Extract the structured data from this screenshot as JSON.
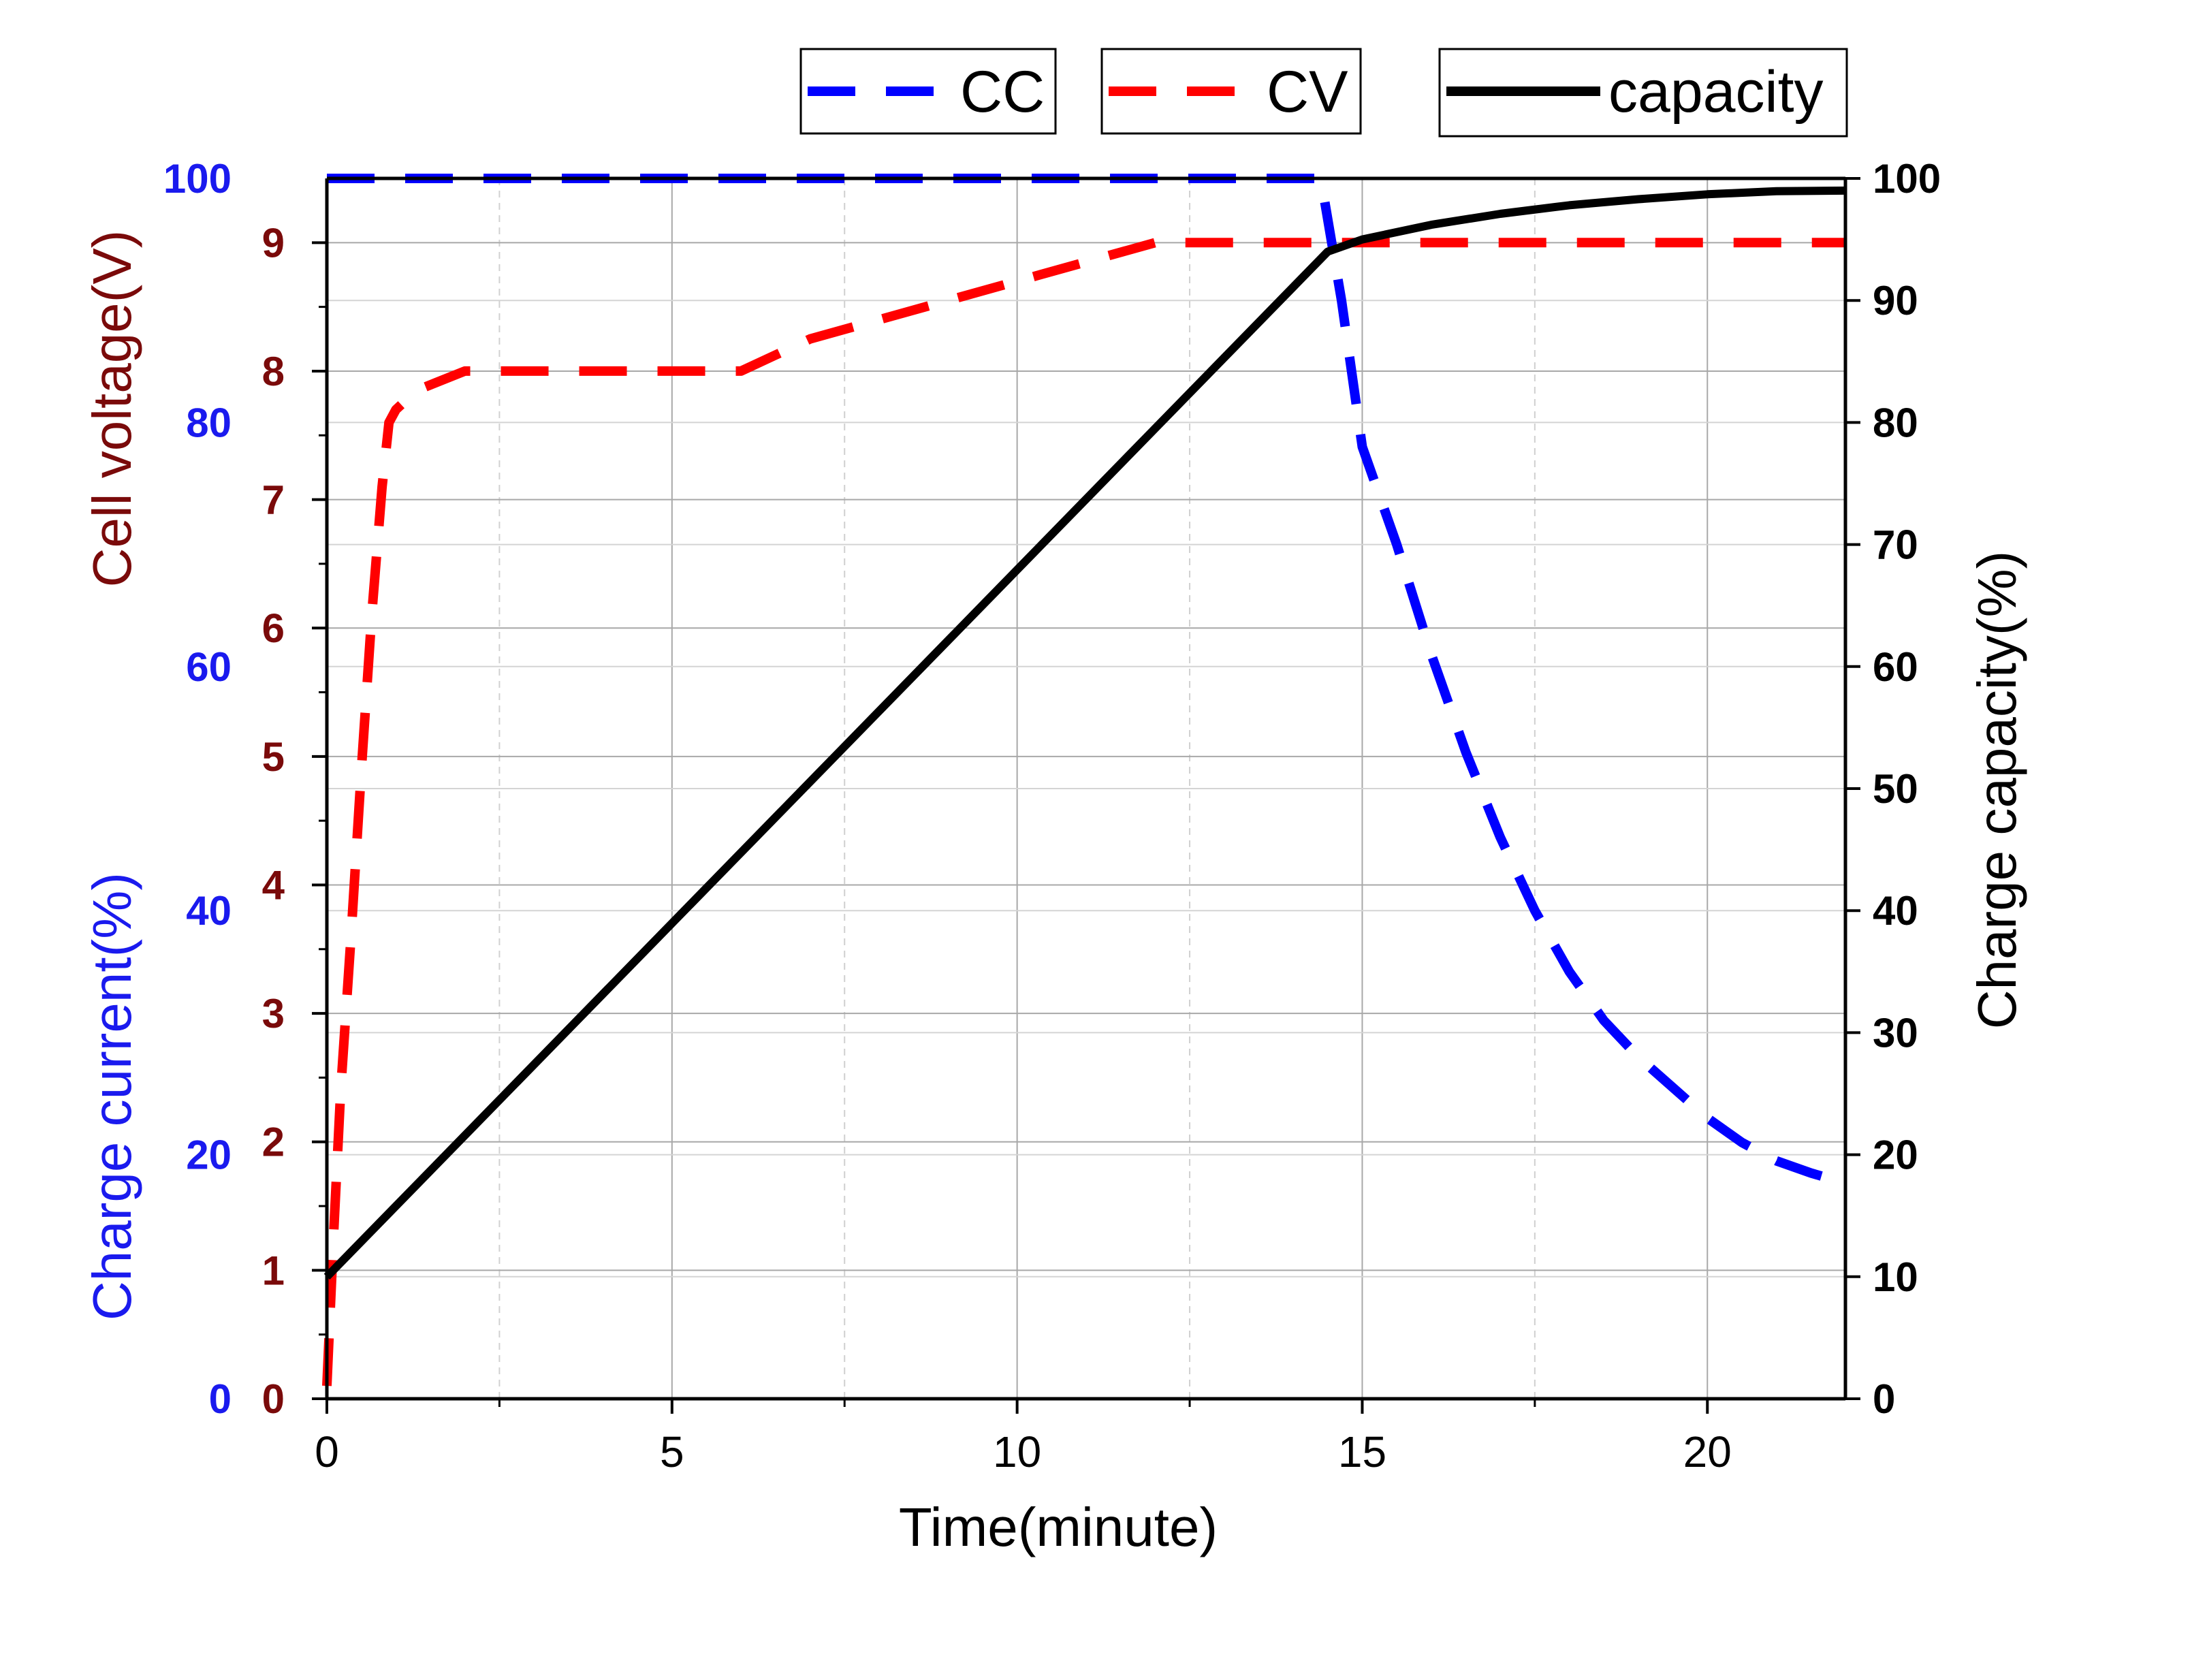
{
  "chart_data": {
    "type": "line",
    "title": "",
    "xlabel": "Time(minute)",
    "xlim": [
      0,
      22
    ],
    "xticks": [
      0,
      5,
      10,
      15,
      20
    ],
    "x_tick_labels": [
      "0",
      "5",
      "10",
      "15",
      "20"
    ],
    "grid": true,
    "legend_placement": "top",
    "axes": {
      "voltage": {
        "label": "Cell voltage(V)",
        "side": "left",
        "lim": [
          0,
          9.5
        ],
        "ticks": [
          0,
          1,
          2,
          3,
          4,
          5,
          6,
          7,
          8,
          9
        ],
        "tick_labels": [
          "0",
          "1",
          "2",
          "3",
          "4",
          "5",
          "6",
          "7",
          "8",
          "9"
        ],
        "color": "#7a0a0a"
      },
      "current": {
        "label": "Charge current(%)",
        "side": "left",
        "lim": [
          0,
          100
        ],
        "ticks": [
          0,
          20,
          40,
          60,
          80,
          100
        ],
        "tick_labels": [
          "0",
          "20",
          "40",
          "60",
          "80",
          "100"
        ],
        "color": "#1a1aee"
      },
      "capacity": {
        "label": "Charge capacity(%)",
        "side": "right",
        "lim": [
          0,
          100
        ],
        "ticks": [
          0,
          10,
          20,
          30,
          40,
          50,
          60,
          70,
          80,
          90,
          100
        ],
        "tick_labels": [
          "0",
          "10",
          "20",
          "30",
          "40",
          "50",
          "60",
          "70",
          "80",
          "90",
          "100"
        ],
        "color": "#000000"
      }
    },
    "series": [
      {
        "name": "CC",
        "axis": "current",
        "color": "#0000ff",
        "style": "dashed",
        "x": [
          0,
          14.4,
          14.7,
          15.0,
          15.5,
          16.0,
          16.5,
          17.0,
          17.5,
          18.0,
          18.5,
          19.0,
          19.5,
          20.0,
          20.5,
          21.0,
          21.5,
          21.8
        ],
        "y": [
          100,
          100,
          90,
          78,
          70,
          61,
          53,
          46,
          40,
          35,
          31,
          28,
          25.5,
          23,
          21,
          19.5,
          18.5,
          18
        ]
      },
      {
        "name": "CV",
        "axis": "voltage",
        "color": "#ff0000",
        "style": "dashed",
        "x": [
          0,
          0.1,
          0.2,
          0.35,
          0.5,
          0.65,
          0.8,
          0.9,
          1.0,
          1.3,
          2.0,
          3.0,
          4.0,
          5.0,
          6.0,
          7.0,
          8.0,
          9.0,
          10.0,
          11.0,
          12.0,
          13.0,
          14.0,
          14.5,
          15.0,
          16.0,
          18.0,
          20.0,
          22.0
        ],
        "y": [
          0.1,
          1.3,
          2.4,
          3.6,
          4.9,
          6.1,
          7.1,
          7.6,
          7.7,
          7.85,
          8.0,
          8.0,
          8.0,
          8.0,
          8.0,
          8.25,
          8.4,
          8.55,
          8.7,
          8.85,
          9.0,
          9.0,
          9.0,
          9.0,
          9.0,
          9.0,
          9.0,
          9.0,
          9.0
        ]
      },
      {
        "name": "capacity",
        "axis": "capacity",
        "color": "#000000",
        "style": "solid",
        "x": [
          0,
          14.5,
          15.0,
          16.0,
          17.0,
          18.0,
          19.0,
          20.0,
          21.0,
          22.0
        ],
        "y": [
          10,
          94,
          95,
          96.2,
          97.1,
          97.8,
          98.3,
          98.7,
          98.95,
          99.0
        ]
      }
    ]
  }
}
